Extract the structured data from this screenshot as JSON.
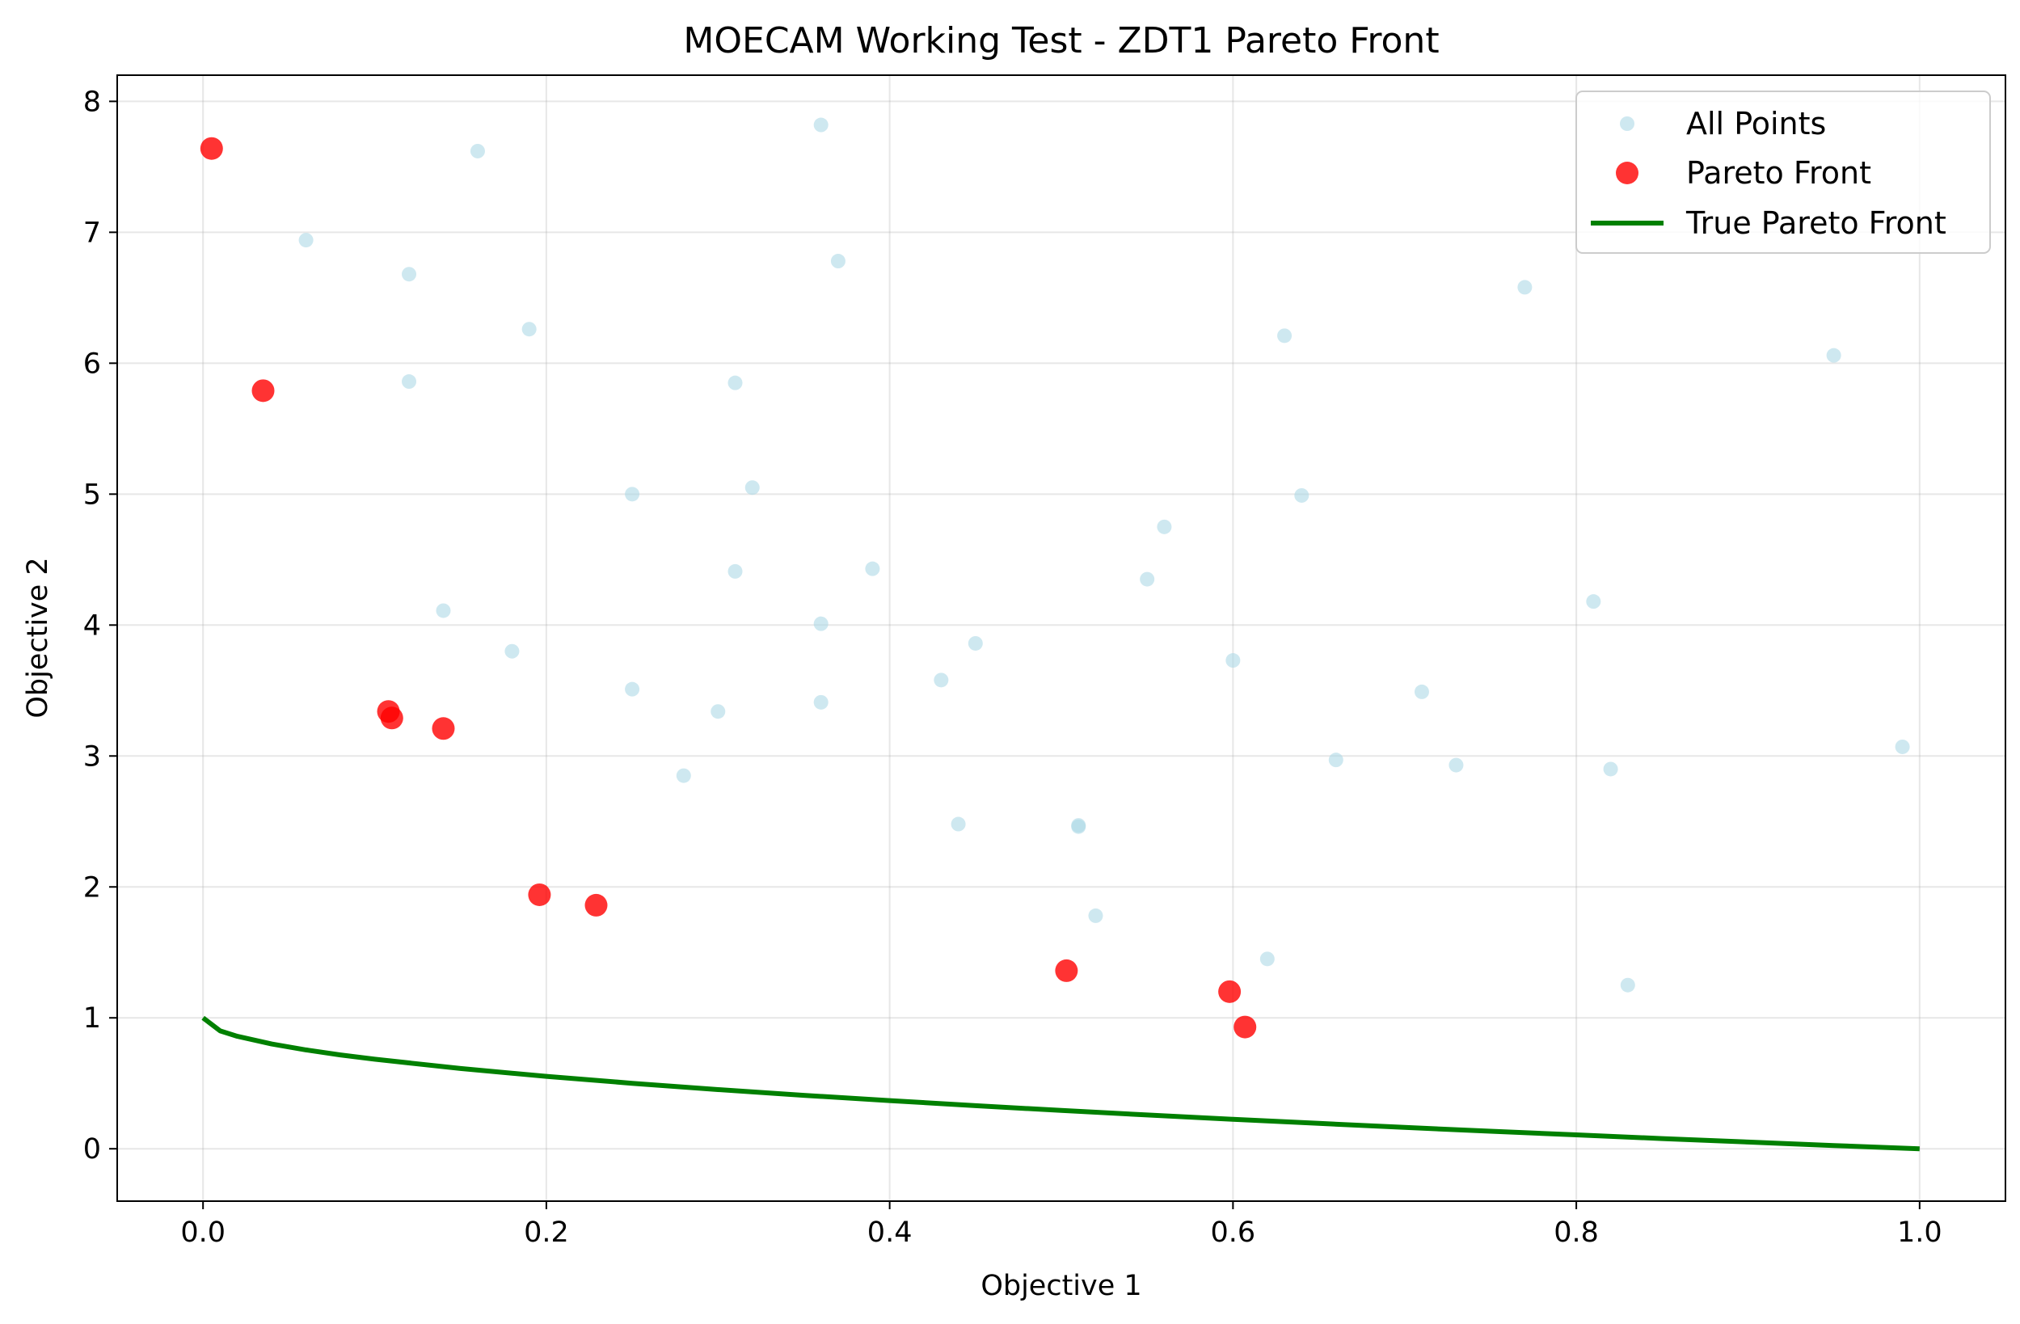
{
  "chart_data": {
    "type": "scatter",
    "title": "MOECAM Working Test - ZDT1 Pareto Front",
    "xlabel": "Objective 1",
    "ylabel": "Objective 2",
    "xlim": [
      -0.05,
      1.05
    ],
    "ylim": [
      -0.4,
      8.2
    ],
    "xticks": [
      0.0,
      0.2,
      0.4,
      0.6,
      0.8,
      1.0
    ],
    "xtick_labels": [
      "0.0",
      "0.2",
      "0.4",
      "0.6",
      "0.8",
      "1.0"
    ],
    "yticks": [
      0,
      1,
      2,
      3,
      4,
      5,
      6,
      7,
      8
    ],
    "ytick_labels": [
      "0",
      "1",
      "2",
      "3",
      "4",
      "5",
      "6",
      "7",
      "8"
    ],
    "grid": true,
    "legend_position": "top-right",
    "series": [
      {
        "name": "All Points",
        "kind": "scatter",
        "color": "#add8e6",
        "x": [
          0.36,
          0.16,
          0.06,
          0.12,
          0.37,
          0.19,
          0.12,
          0.31,
          0.77,
          0.63,
          0.95,
          0.25,
          0.32,
          0.64,
          0.56,
          0.31,
          0.39,
          0.55,
          0.14,
          0.36,
          0.81,
          0.18,
          0.45,
          0.6,
          0.25,
          0.43,
          0.71,
          0.3,
          0.36,
          0.99,
          0.66,
          0.73,
          0.82,
          0.28,
          0.44,
          0.51,
          0.51,
          0.52,
          0.62,
          0.83
        ],
        "y": [
          7.82,
          7.62,
          6.94,
          6.68,
          6.78,
          6.26,
          5.86,
          5.85,
          6.58,
          6.21,
          6.06,
          5.0,
          5.05,
          4.99,
          4.75,
          4.41,
          4.43,
          4.35,
          4.11,
          4.01,
          4.18,
          3.8,
          3.86,
          3.73,
          3.51,
          3.58,
          3.49,
          3.34,
          3.41,
          3.07,
          2.97,
          2.93,
          2.9,
          2.85,
          2.48,
          2.47,
          2.46,
          1.78,
          1.45,
          1.25
        ]
      },
      {
        "name": "Pareto Front",
        "kind": "scatter",
        "color": "#ff0000",
        "x": [
          0.005,
          0.035,
          0.108,
          0.11,
          0.14,
          0.196,
          0.229,
          0.503,
          0.598,
          0.607
        ],
        "y": [
          7.64,
          5.79,
          3.34,
          3.29,
          3.21,
          1.94,
          1.86,
          1.36,
          1.2,
          0.93
        ]
      },
      {
        "name": "True Pareto Front",
        "kind": "line",
        "color": "#008000",
        "x": [
          0.0,
          0.01,
          0.02,
          0.04,
          0.06,
          0.08,
          0.1,
          0.15,
          0.2,
          0.25,
          0.3,
          0.35,
          0.4,
          0.45,
          0.5,
          0.55,
          0.6,
          0.65,
          0.7,
          0.75,
          0.8,
          0.85,
          0.9,
          0.95,
          1.0
        ],
        "y": [
          1.0,
          0.9,
          0.859,
          0.8,
          0.755,
          0.717,
          0.684,
          0.613,
          0.553,
          0.5,
          0.452,
          0.408,
          0.368,
          0.329,
          0.293,
          0.258,
          0.225,
          0.194,
          0.163,
          0.134,
          0.106,
          0.078,
          0.051,
          0.025,
          0.0
        ]
      }
    ]
  }
}
